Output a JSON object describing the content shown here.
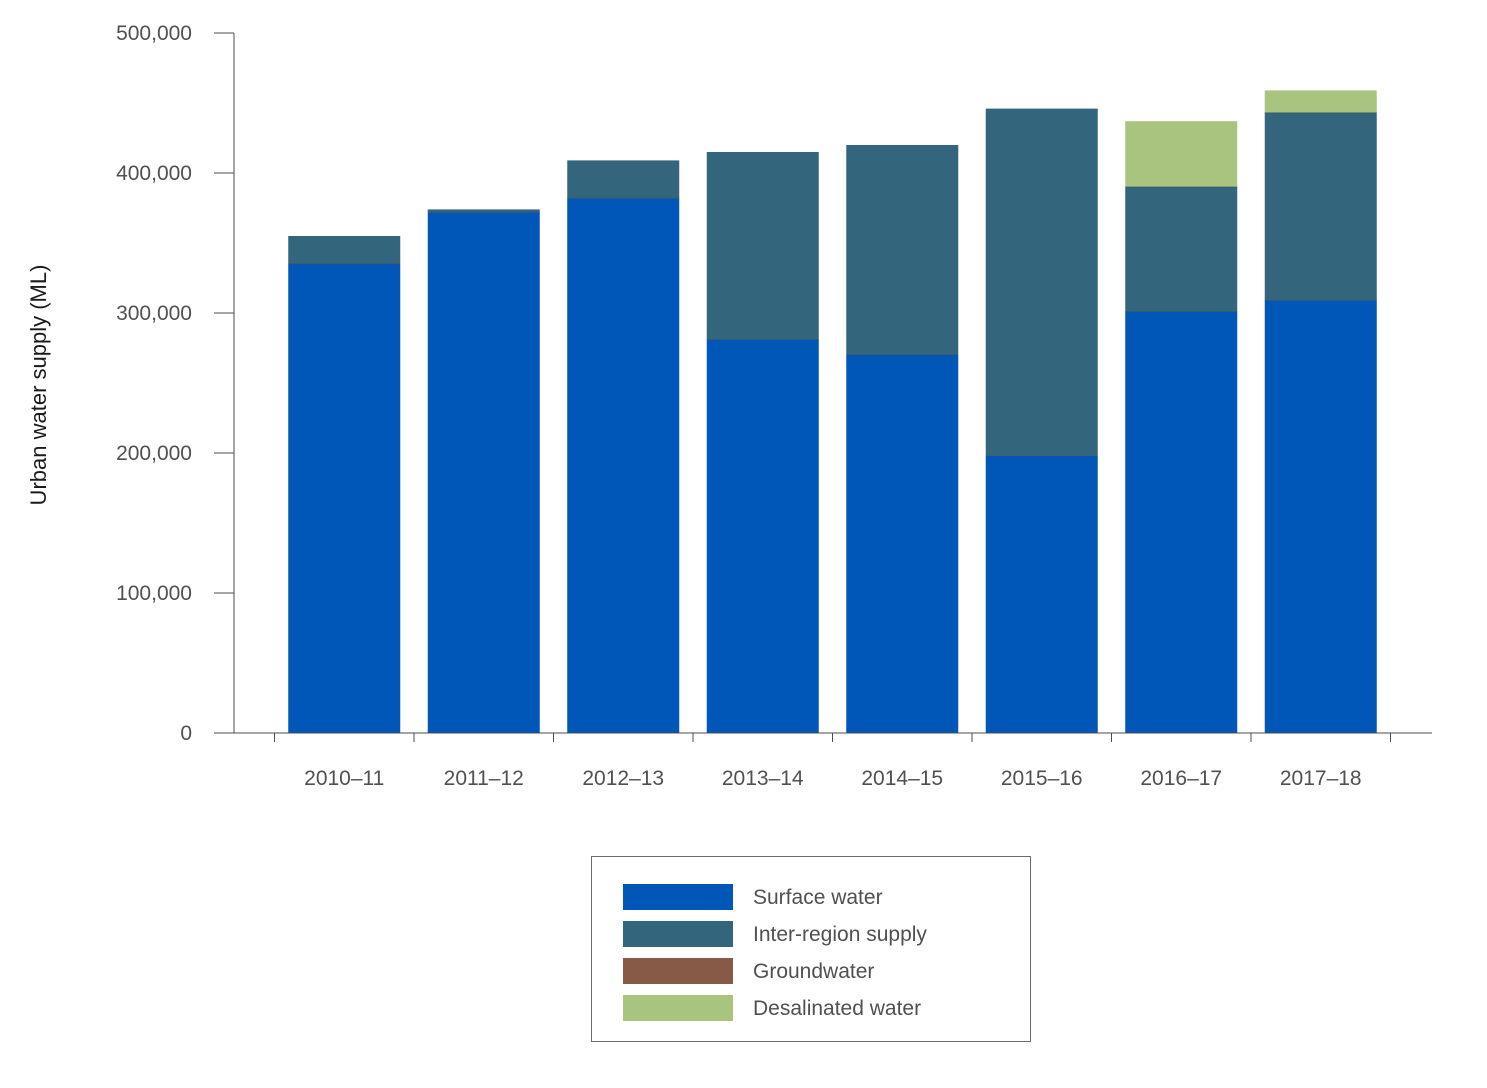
{
  "chart_data": {
    "type": "bar",
    "stacked": true,
    "title": "",
    "xlabel": "",
    "ylabel": "Urban water supply (ML)",
    "ylim": [
      0,
      500000
    ],
    "yticks": [
      0,
      100000,
      200000,
      300000,
      400000,
      500000
    ],
    "ytick_labels": [
      "0",
      "100,000",
      "200,000",
      "300,000",
      "400,000",
      "500,000"
    ],
    "grid": false,
    "legend_position": "bottom-center",
    "categories": [
      "2010–11",
      "2011–12",
      "2012–13",
      "2013–14",
      "2014–15",
      "2015–16",
      "2016–17",
      "2017–18"
    ],
    "series": [
      {
        "name": "Surface water",
        "color": "#0057b8",
        "values": [
          335000,
          372000,
          382000,
          281000,
          270000,
          198000,
          301000,
          309000
        ]
      },
      {
        "name": "Inter-region supply",
        "color": "#33667d",
        "values": [
          20000,
          2000,
          27000,
          134000,
          150000,
          248000,
          89000,
          134000
        ]
      },
      {
        "name": "Groundwater",
        "color": "#875a48",
        "values": [
          0,
          0,
          0,
          0,
          0,
          0,
          0,
          0
        ]
      },
      {
        "name": "Desalinated water",
        "color": "#a8c47e",
        "values": [
          0,
          0,
          0,
          0,
          0,
          0,
          47000,
          16000
        ]
      }
    ]
  }
}
